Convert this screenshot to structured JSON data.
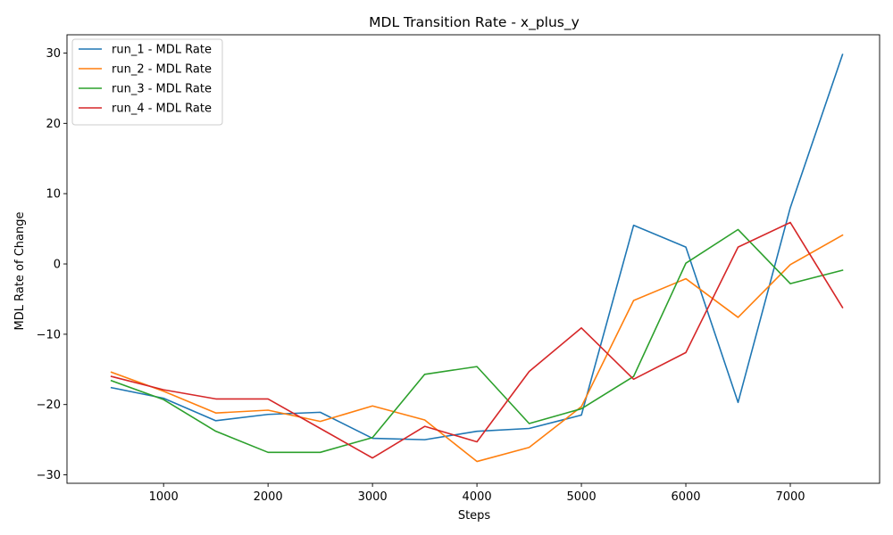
{
  "chart_data": {
    "type": "line",
    "title": "MDL Transition Rate - x_plus_y",
    "xlabel": "Steps",
    "ylabel": "MDL Rate of Change",
    "xlim": [
      75,
      7855
    ],
    "ylim": [
      -31.2,
      32.6
    ],
    "xticks": [
      1000,
      2000,
      3000,
      4000,
      5000,
      6000,
      7000
    ],
    "yticks": [
      -30,
      -20,
      -10,
      0,
      10,
      20,
      30
    ],
    "grid": false,
    "legend_position": "upper-left",
    "x": [
      500,
      1000,
      1500,
      2000,
      2500,
      3000,
      3500,
      4000,
      4500,
      5000,
      5500,
      6000,
      6500,
      7000,
      7500
    ],
    "series": [
      {
        "name": "run_1 - MDL Rate",
        "color": "#1f77b4",
        "values": [
          -17.6,
          -19.1,
          -22.3,
          -21.4,
          -21.1,
          -24.8,
          -25.0,
          -23.8,
          -23.4,
          -21.5,
          5.5,
          2.4,
          -19.7,
          8.0,
          29.8
        ]
      },
      {
        "name": "run_2 - MDL Rate",
        "color": "#ff7f0e",
        "values": [
          -15.4,
          -18.1,
          -21.2,
          -20.8,
          -22.4,
          -20.2,
          -22.2,
          -28.1,
          -26.1,
          -20.3,
          -5.2,
          -2.1,
          -7.6,
          -0.1,
          4.1
        ]
      },
      {
        "name": "run_3 - MDL Rate",
        "color": "#2ca02c",
        "values": [
          -16.6,
          -19.3,
          -23.8,
          -26.8,
          -26.8,
          -24.7,
          -15.7,
          -14.6,
          -22.7,
          -20.6,
          -16.0,
          0.1,
          4.9,
          -2.8,
          -0.9
        ]
      },
      {
        "name": "run_4 - MDL Rate",
        "color": "#d62728",
        "values": [
          -16.0,
          -17.9,
          -19.2,
          -19.2,
          -23.4,
          -27.6,
          -23.1,
          -25.3,
          -15.3,
          -9.1,
          -16.4,
          -12.6,
          2.4,
          5.9,
          -6.2
        ]
      }
    ]
  }
}
